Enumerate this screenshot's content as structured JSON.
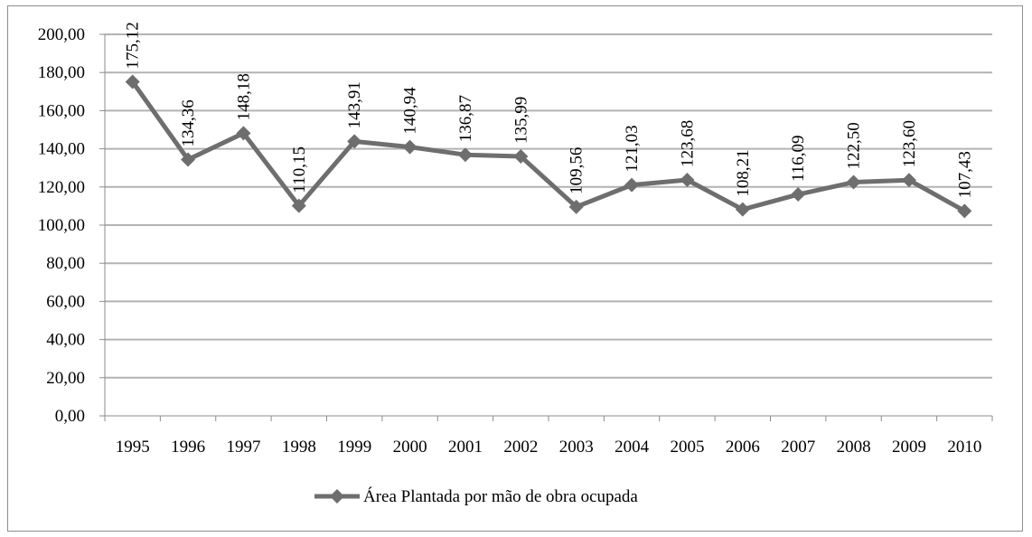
{
  "chart_data": {
    "type": "line",
    "categories": [
      "1995",
      "1996",
      "1997",
      "1998",
      "1999",
      "2000",
      "2001",
      "2002",
      "2003",
      "2004",
      "2005",
      "2006",
      "2007",
      "2008",
      "2009",
      "2010"
    ],
    "series": [
      {
        "name": "Área Plantada por mão de obra ocupada",
        "values": [
          175.12,
          134.36,
          148.18,
          110.15,
          143.91,
          140.94,
          136.87,
          135.99,
          109.56,
          121.03,
          123.68,
          108.21,
          116.09,
          122.5,
          123.6,
          107.43
        ],
        "labels": [
          "175,12",
          "134,36",
          "148,18",
          "110,15",
          "143,91",
          "140,94",
          "136,87",
          "135,99",
          "109,56",
          "121,03",
          "123,68",
          "108,21",
          "116,09",
          "122,50",
          "123,60",
          "107,43"
        ],
        "color": "#6e6e6e"
      }
    ],
    "yticks": [
      "0,00",
      "20,00",
      "40,00",
      "60,00",
      "80,00",
      "100,00",
      "120,00",
      "140,00",
      "160,00",
      "180,00",
      "200,00"
    ],
    "ylim": [
      0,
      200
    ],
    "ystep": 20,
    "grid": true,
    "legend_position": "bottom",
    "title": "",
    "xlabel": "",
    "ylabel": ""
  }
}
